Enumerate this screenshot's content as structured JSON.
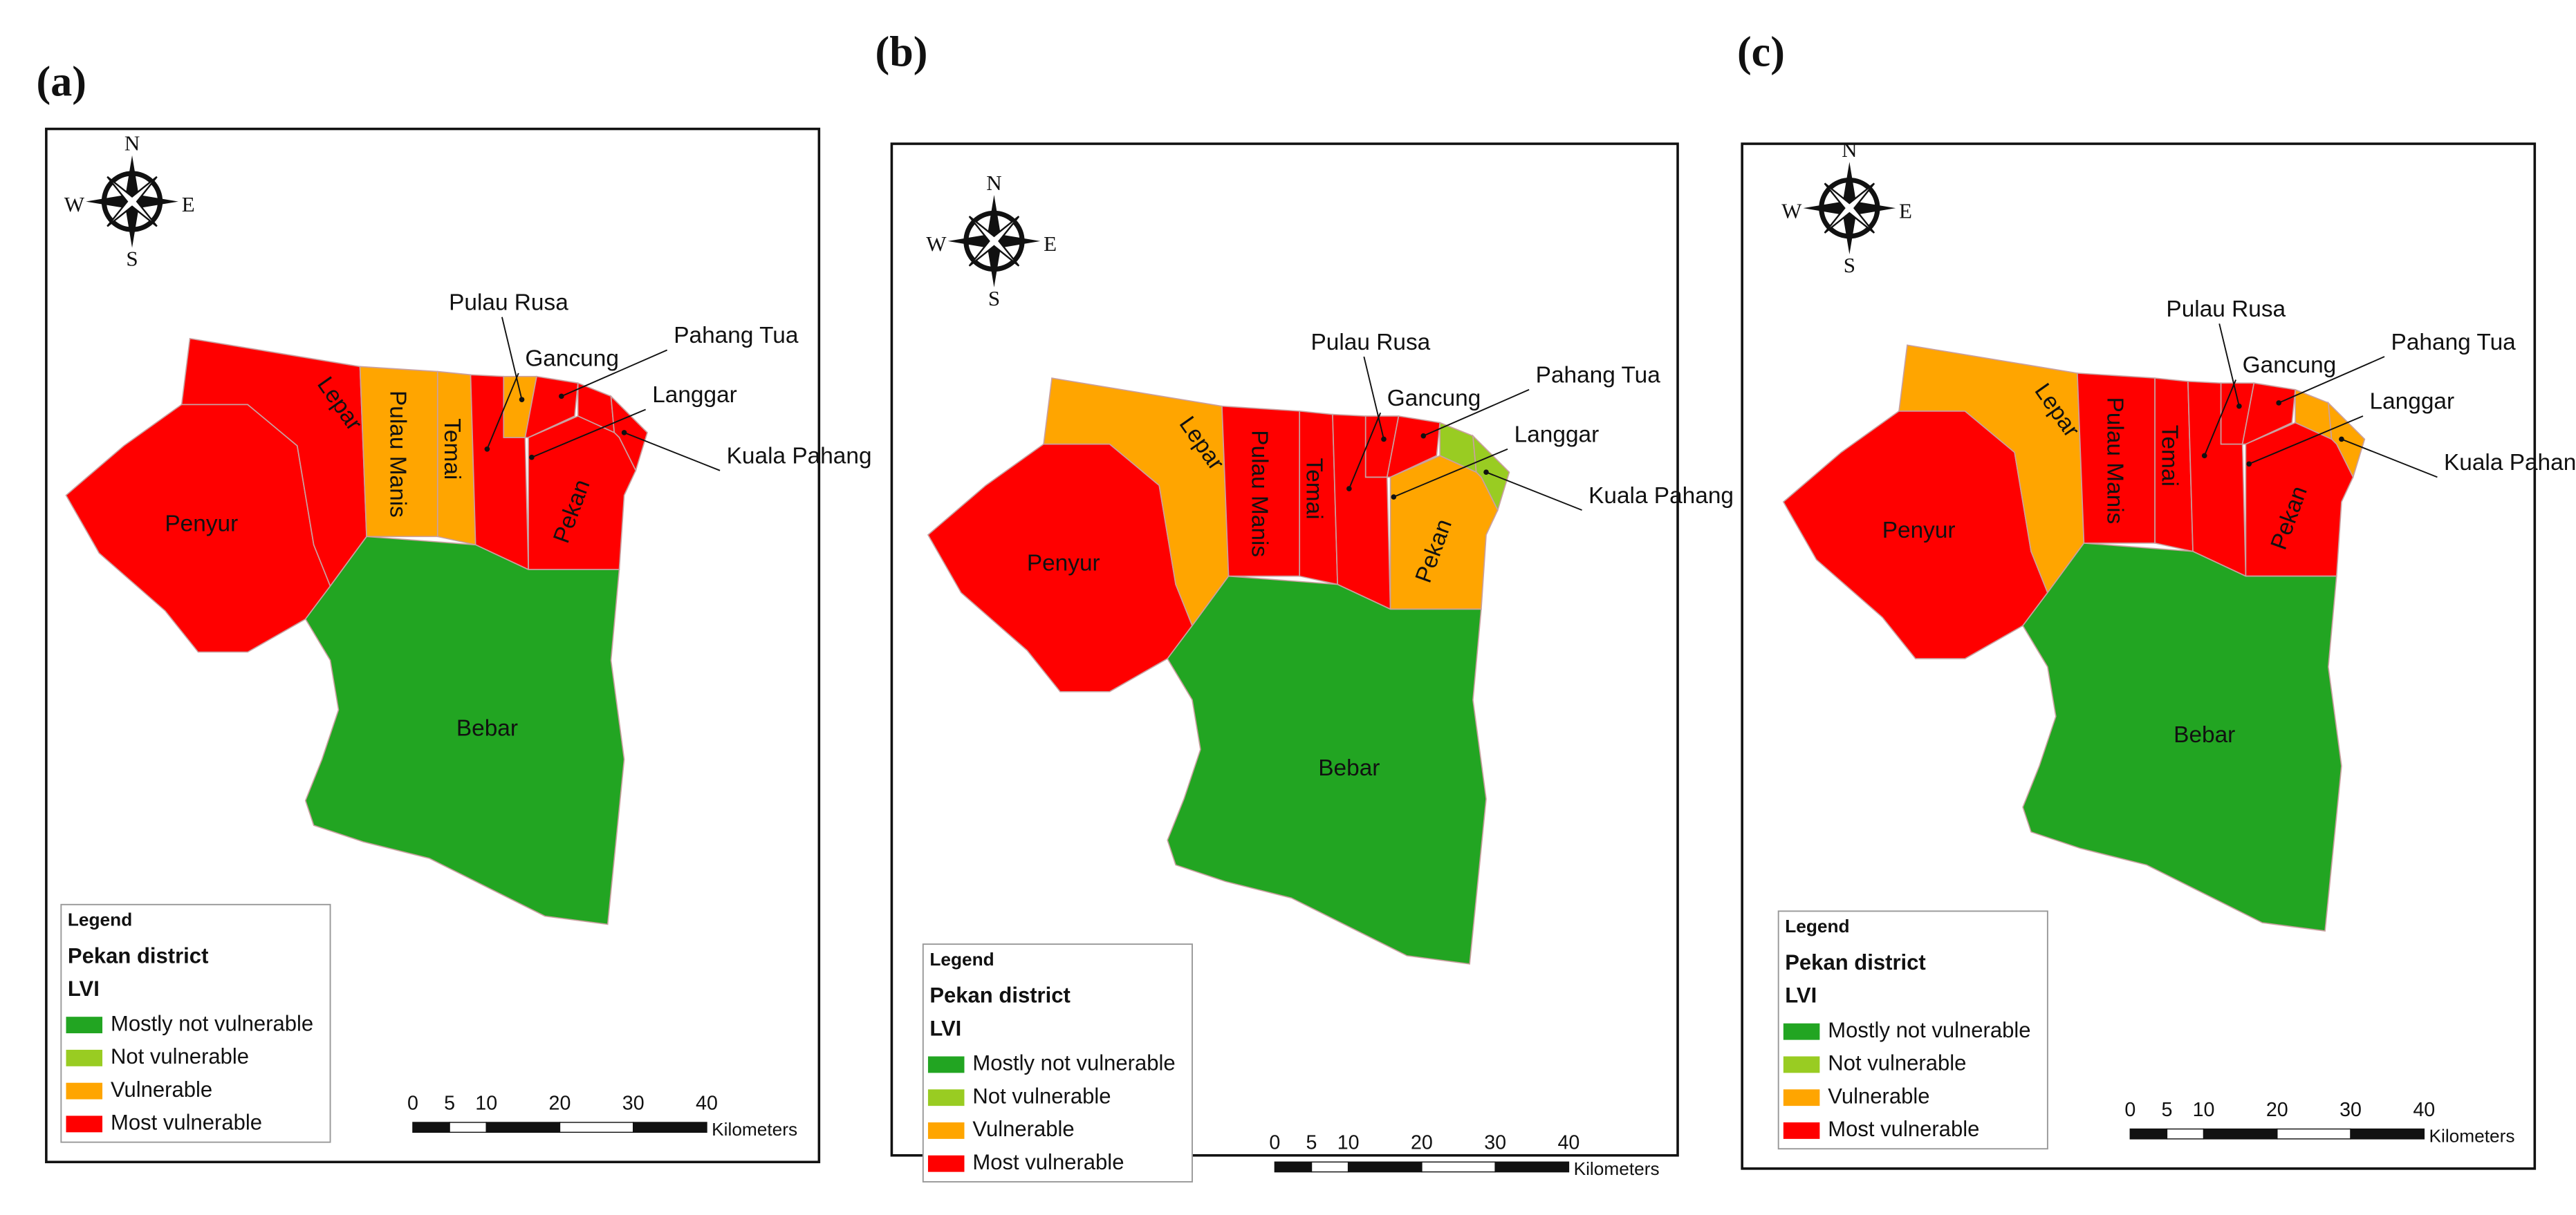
{
  "panels": [
    {
      "label": "(a)",
      "regions": [
        {
          "name": "Penyur",
          "color": "#ff0000"
        },
        {
          "name": "Lepar",
          "color": "#ff0000"
        },
        {
          "name": "Pulau Manis",
          "color": "#ffa500"
        },
        {
          "name": "Temai",
          "color": "#ffa500"
        },
        {
          "name": "Gancung",
          "color": "#ff0000"
        },
        {
          "name": "Pulau Rusa",
          "color": "#ffa500"
        },
        {
          "name": "Pahang Tua",
          "color": "#ff0000"
        },
        {
          "name": "Langgar",
          "color": "#ff0000"
        },
        {
          "name": "Kuala Pahang",
          "color": "#ff0000"
        },
        {
          "name": "Pekan",
          "color": "#ff0000"
        },
        {
          "name": "Bebar",
          "color": "#22a522"
        }
      ]
    },
    {
      "label": "(b)",
      "regions": [
        {
          "name": "Penyur",
          "color": "#ff0000"
        },
        {
          "name": "Lepar",
          "color": "#ffa500"
        },
        {
          "name": "Pulau Manis",
          "color": "#ff0000"
        },
        {
          "name": "Temai",
          "color": "#ff0000"
        },
        {
          "name": "Gancung",
          "color": "#ff0000"
        },
        {
          "name": "Pulau Rusa",
          "color": "#ff0000"
        },
        {
          "name": "Pahang Tua",
          "color": "#ff0000"
        },
        {
          "name": "Langgar",
          "color": "#99cc22"
        },
        {
          "name": "Kuala Pahang",
          "color": "#99cc22"
        },
        {
          "name": "Pekan",
          "color": "#ffa500"
        },
        {
          "name": "Bebar",
          "color": "#22a522"
        }
      ]
    },
    {
      "label": "(c)",
      "regions": [
        {
          "name": "Penyur",
          "color": "#ff0000"
        },
        {
          "name": "Lepar",
          "color": "#ffa500"
        },
        {
          "name": "Pulau Manis",
          "color": "#ff0000"
        },
        {
          "name": "Temai",
          "color": "#ff0000"
        },
        {
          "name": "Gancung",
          "color": "#ff0000"
        },
        {
          "name": "Pulau Rusa",
          "color": "#ff0000"
        },
        {
          "name": "Pahang Tua",
          "color": "#ff0000"
        },
        {
          "name": "Langgar",
          "color": "#ffa500"
        },
        {
          "name": "Kuala Pahang",
          "color": "#ffa500"
        },
        {
          "name": "Pekan",
          "color": "#ff0000"
        },
        {
          "name": "Bebar",
          "color": "#22a522"
        }
      ]
    }
  ],
  "compass": {
    "n": "N",
    "e": "E",
    "s": "S",
    "w": "W"
  },
  "legend": {
    "title": "Legend",
    "layer": "Pekan district",
    "field": "LVI",
    "items": [
      {
        "label": "Mostly not vulnerable",
        "color": "#22a522"
      },
      {
        "label": "Not vulnerable",
        "color": "#99cc22"
      },
      {
        "label": "Vulnerable",
        "color": "#ffa500"
      },
      {
        "label": "Most vulnerable",
        "color": "#ff0000"
      }
    ]
  },
  "scale_bar": {
    "ticks": [
      0,
      5,
      10,
      20,
      30,
      40
    ],
    "unit": "Kilometers"
  }
}
